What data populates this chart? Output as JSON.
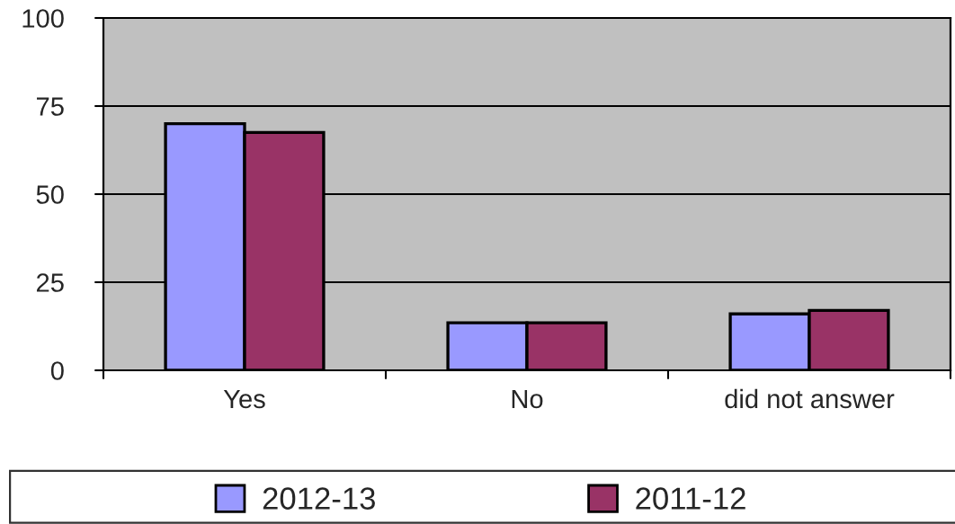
{
  "chart_data": {
    "type": "bar",
    "categories": [
      "Yes",
      "No",
      "did not answer"
    ],
    "series": [
      {
        "name": "2012-13",
        "color": "#9999ff",
        "values": [
          70,
          13.5,
          16
        ]
      },
      {
        "name": "2011-12",
        "color": "#993366",
        "values": [
          67.5,
          13.5,
          17
        ]
      }
    ],
    "ylim": [
      0,
      100
    ],
    "yticks": [
      0,
      25,
      50,
      75,
      100
    ],
    "grid": "y",
    "legend": "bottom"
  }
}
